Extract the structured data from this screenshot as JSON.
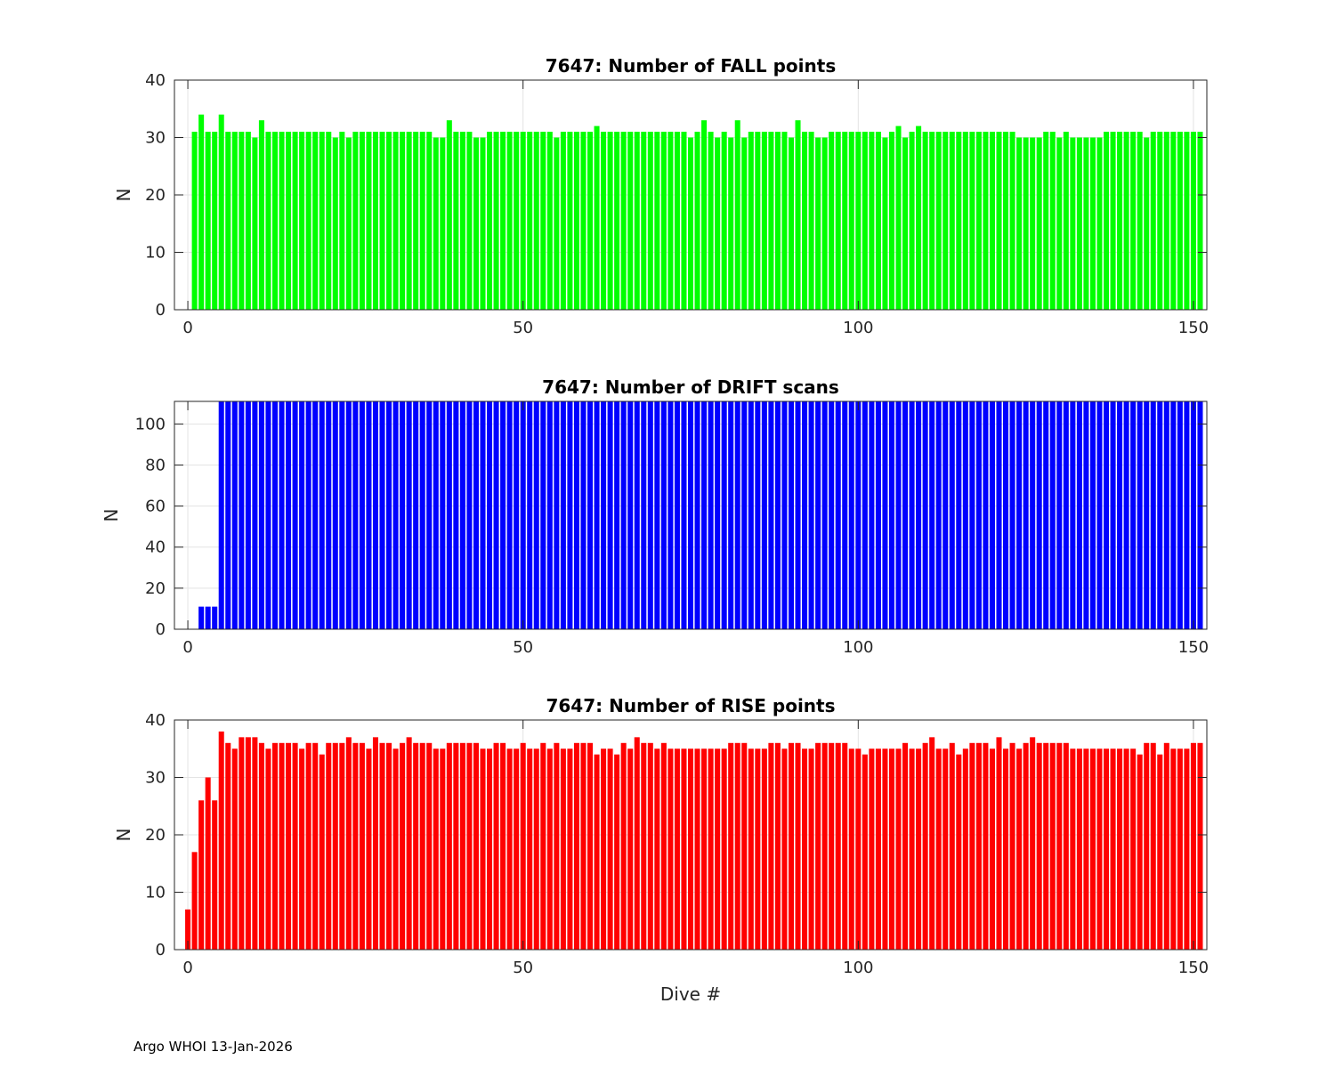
{
  "footer": "Argo WHOI 13-Jan-2026",
  "chart_data": [
    {
      "type": "bar",
      "title": "7647: Number of FALL points",
      "xlabel": "",
      "ylabel": "N",
      "xlim": [
        -2,
        152
      ],
      "ylim": [
        0,
        40
      ],
      "xticks": [
        0,
        50,
        100,
        150
      ],
      "yticks": [
        0,
        10,
        20,
        30,
        40
      ],
      "grid": true,
      "color": "#00ff00",
      "x_start": 1,
      "values": [
        31,
        34,
        31,
        31,
        34,
        31,
        31,
        31,
        31,
        30,
        33,
        31,
        31,
        31,
        31,
        31,
        31,
        31,
        31,
        31,
        31,
        30,
        31,
        30,
        31,
        31,
        31,
        31,
        31,
        31,
        31,
        31,
        31,
        31,
        31,
        31,
        30,
        30,
        33,
        31,
        31,
        31,
        30,
        30,
        31,
        31,
        31,
        31,
        31,
        31,
        31,
        31,
        31,
        31,
        30,
        31,
        31,
        31,
        31,
        31,
        32,
        31,
        31,
        31,
        31,
        31,
        31,
        31,
        31,
        31,
        31,
        31,
        31,
        31,
        30,
        31,
        33,
        31,
        30,
        31,
        30,
        33,
        30,
        31,
        31,
        31,
        31,
        31,
        31,
        30,
        33,
        31,
        31,
        30,
        30,
        31,
        31,
        31,
        31,
        31,
        31,
        31,
        31,
        30,
        31,
        32,
        30,
        31,
        32,
        31,
        31,
        31,
        31,
        31,
        31,
        31,
        31,
        31,
        31,
        31,
        31,
        31,
        31,
        30,
        30,
        30,
        30,
        31,
        31,
        30,
        31,
        30,
        30,
        30,
        30,
        30,
        31,
        31,
        31,
        31,
        31,
        31,
        30,
        31,
        31,
        31,
        31,
        31,
        31,
        31,
        31
      ]
    },
    {
      "type": "bar",
      "title": "7647: Number of DRIFT scans",
      "xlabel": "",
      "ylabel": "N",
      "xlim": [
        -2,
        152
      ],
      "ylim": [
        0,
        111
      ],
      "xticks": [
        0,
        50,
        100,
        150
      ],
      "yticks": [
        0,
        20,
        40,
        60,
        80,
        100
      ],
      "grid": true,
      "color": "#0000ff",
      "x_start": 2,
      "values": [
        11,
        11,
        11,
        111,
        111,
        111,
        111,
        111,
        111,
        111,
        111,
        111,
        111,
        111,
        111,
        111,
        111,
        111,
        111,
        111,
        111,
        111,
        111,
        111,
        111,
        111,
        111,
        111,
        111,
        111,
        111,
        111,
        111,
        111,
        111,
        111,
        111,
        111,
        111,
        111,
        111,
        111,
        111,
        111,
        111,
        111,
        111,
        111,
        111,
        111,
        111,
        111,
        111,
        111,
        111,
        111,
        111,
        111,
        111,
        111,
        111,
        111,
        111,
        111,
        111,
        111,
        111,
        111,
        111,
        111,
        111,
        111,
        111,
        111,
        111,
        111,
        111,
        111,
        111,
        111,
        111,
        111,
        111,
        111,
        111,
        111,
        111,
        111,
        111,
        111,
        111,
        111,
        111,
        111,
        111,
        111,
        111,
        111,
        111,
        111,
        111,
        111,
        111,
        111,
        111,
        111,
        111,
        111,
        111,
        111,
        111,
        111,
        111,
        111,
        111,
        111,
        111,
        111,
        111,
        111,
        111,
        111,
        111,
        111,
        111,
        111,
        111,
        111,
        111,
        111,
        111,
        111,
        111,
        111,
        111,
        111,
        111,
        111,
        111,
        111,
        111,
        111,
        111,
        111,
        111,
        111,
        111,
        111,
        111,
        111
      ]
    },
    {
      "type": "bar",
      "title": "7647: Number of RISE points",
      "xlabel": "Dive #",
      "ylabel": "N",
      "xlim": [
        -2,
        152
      ],
      "ylim": [
        0,
        40
      ],
      "xticks": [
        0,
        50,
        100,
        150
      ],
      "yticks": [
        0,
        10,
        20,
        30,
        40
      ],
      "grid": true,
      "color": "#ff0000",
      "x_start": 0,
      "values": [
        7,
        17,
        26,
        30,
        26,
        38,
        36,
        35,
        37,
        37,
        37,
        36,
        35,
        36,
        36,
        36,
        36,
        35,
        36,
        36,
        34,
        36,
        36,
        36,
        37,
        36,
        36,
        35,
        37,
        36,
        36,
        35,
        36,
        37,
        36,
        36,
        36,
        35,
        35,
        36,
        36,
        36,
        36,
        36,
        35,
        35,
        36,
        36,
        35,
        35,
        36,
        35,
        35,
        36,
        35,
        36,
        35,
        35,
        36,
        36,
        36,
        34,
        35,
        35,
        34,
        36,
        35,
        37,
        36,
        36,
        35,
        36,
        35,
        35,
        35,
        35,
        35,
        35,
        35,
        35,
        35,
        36,
        36,
        36,
        35,
        35,
        35,
        36,
        36,
        35,
        36,
        36,
        35,
        35,
        36,
        36,
        36,
        36,
        36,
        35,
        35,
        34,
        35,
        35,
        35,
        35,
        35,
        36,
        35,
        35,
        36,
        37,
        35,
        35,
        36,
        34,
        35,
        36,
        36,
        36,
        35,
        37,
        35,
        36,
        35,
        36,
        37,
        36,
        36,
        36,
        36,
        36,
        35,
        35,
        35,
        35,
        35,
        35,
        35,
        35,
        35,
        35,
        34,
        36,
        36,
        34,
        36,
        35,
        35,
        35,
        36,
        36
      ]
    }
  ]
}
